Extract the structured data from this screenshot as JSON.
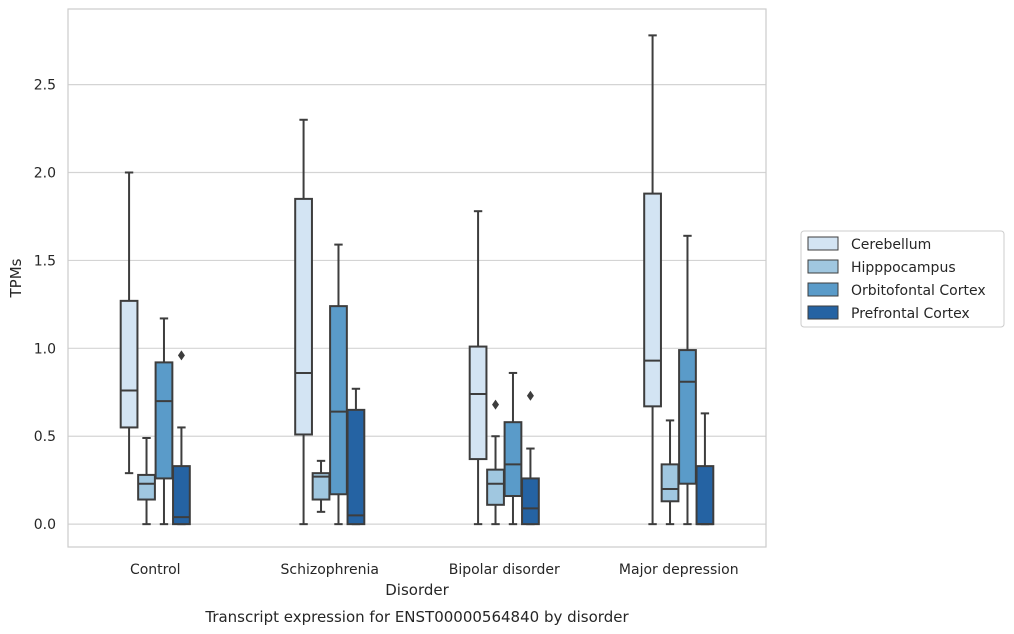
{
  "chart_data": {
    "type": "boxplot",
    "title": "Transcript expression for ENST00000564840 by disorder",
    "xlabel": "Disorder",
    "ylabel": "TPMs",
    "ylim": [
      -0.13,
      2.93
    ],
    "yticks": [
      "0.0",
      "0.5",
      "1.0",
      "1.5",
      "2.0",
      "2.5"
    ],
    "ytick_values": [
      0,
      0.5,
      1.0,
      1.5,
      2.0,
      2.5
    ],
    "grid": true,
    "legend_position": "right",
    "categories": [
      "Control",
      "Schizophrenia",
      "Bipolar disorder",
      "Major depression"
    ],
    "series": [
      {
        "name": "Cerebellum",
        "color": "#d3e4f3",
        "boxes": [
          {
            "whislo": 0.29,
            "q1": 0.55,
            "med": 0.76,
            "q3": 1.27,
            "whishi": 2.0,
            "fliers": []
          },
          {
            "whislo": 0.0,
            "q1": 0.51,
            "med": 0.86,
            "q3": 1.85,
            "whishi": 2.3,
            "fliers": []
          },
          {
            "whislo": 0.0,
            "q1": 0.37,
            "med": 0.74,
            "q3": 1.01,
            "whishi": 1.78,
            "fliers": []
          },
          {
            "whislo": 0.0,
            "q1": 0.67,
            "med": 0.93,
            "q3": 1.88,
            "whishi": 2.78,
            "fliers": []
          }
        ]
      },
      {
        "name": "Hipppocampus",
        "color": "#a0c7e0",
        "boxes": [
          {
            "whislo": 0.0,
            "q1": 0.14,
            "med": 0.23,
            "q3": 0.28,
            "whishi": 0.49,
            "fliers": []
          },
          {
            "whislo": 0.07,
            "q1": 0.14,
            "med": 0.27,
            "q3": 0.29,
            "whishi": 0.36,
            "fliers": []
          },
          {
            "whislo": 0.0,
            "q1": 0.11,
            "med": 0.23,
            "q3": 0.31,
            "whishi": 0.5,
            "fliers": [
              0.68
            ]
          },
          {
            "whislo": 0.0,
            "q1": 0.13,
            "med": 0.2,
            "q3": 0.34,
            "whishi": 0.59,
            "fliers": []
          }
        ]
      },
      {
        "name": "Orbitofontal Cortex",
        "color": "#5a9bc9",
        "boxes": [
          {
            "whislo": 0.0,
            "q1": 0.26,
            "med": 0.7,
            "q3": 0.92,
            "whishi": 1.17,
            "fliers": []
          },
          {
            "whislo": 0.0,
            "q1": 0.17,
            "med": 0.64,
            "q3": 1.24,
            "whishi": 1.59,
            "fliers": []
          },
          {
            "whislo": 0.0,
            "q1": 0.16,
            "med": 0.34,
            "q3": 0.58,
            "whishi": 0.86,
            "fliers": []
          },
          {
            "whislo": 0.0,
            "q1": 0.23,
            "med": 0.81,
            "q3": 0.99,
            "whishi": 1.64,
            "fliers": []
          }
        ]
      },
      {
        "name": "Prefrontal Cortex",
        "color": "#2563a3",
        "boxes": [
          {
            "whislo": 0.0,
            "q1": 0.0,
            "med": 0.04,
            "q3": 0.33,
            "whishi": 0.55,
            "fliers": [
              0.96
            ]
          },
          {
            "whislo": 0.0,
            "q1": 0.0,
            "med": 0.05,
            "q3": 0.65,
            "whishi": 0.77,
            "fliers": []
          },
          {
            "whislo": 0.0,
            "q1": 0.0,
            "med": 0.09,
            "q3": 0.26,
            "whishi": 0.43,
            "fliers": [
              0.73
            ]
          },
          {
            "whislo": 0.0,
            "q1": 0.0,
            "med": 0.0,
            "q3": 0.33,
            "whishi": 0.63,
            "fliers": []
          }
        ]
      }
    ]
  }
}
